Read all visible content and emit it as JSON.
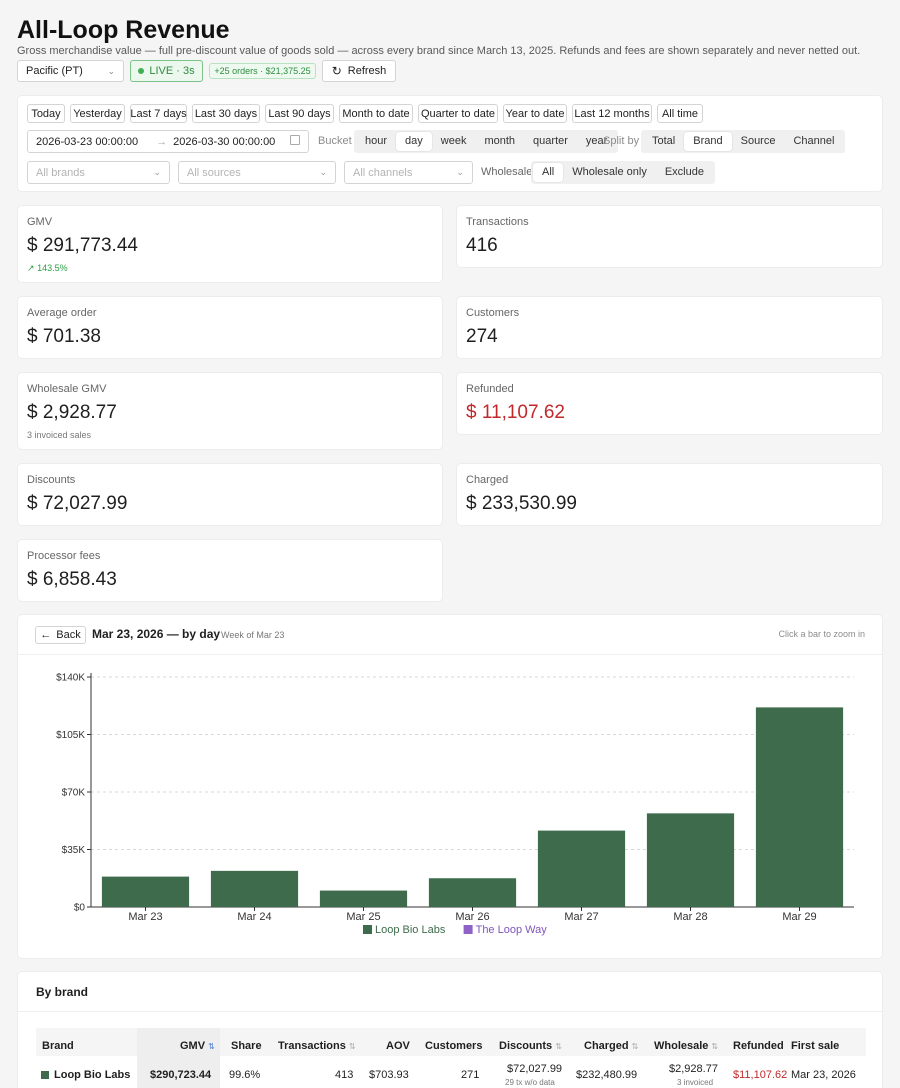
{
  "header": {
    "title": "All-Loop Revenue",
    "subtitle": "Gross merchandise value — full pre-discount value of goods sold — across every brand since March 13, 2025. Refunds and fees are shown separately and never netted out."
  },
  "toolbar": {
    "timezone": "Pacific (PT)",
    "live": "LIVE · 3s",
    "orders_badge": "+25 orders · $21,375.25",
    "refresh": "Refresh"
  },
  "ranges": [
    "Today",
    "Yesterday",
    "Last 7 days",
    "Last 30 days",
    "Last 90 days",
    "Month to date",
    "Quarter to date",
    "Year to date",
    "Last 12 months",
    "All time"
  ],
  "dates": {
    "start": "2026-03-23 00:00:00",
    "arrow": "→",
    "end": "2026-03-30 00:00:00"
  },
  "bucket": {
    "label": "Bucket",
    "options": [
      "hour",
      "day",
      "week",
      "month",
      "quarter",
      "year"
    ],
    "selected": "day"
  },
  "split": {
    "label": "Split by",
    "options": [
      "Total",
      "Brand",
      "Source",
      "Channel"
    ],
    "selected": "Brand"
  },
  "filters": {
    "brands": "All brands",
    "sources": "All sources",
    "channels": "All channels"
  },
  "wholesale": {
    "label": "Wholesale",
    "options": [
      "All",
      "Wholesale only",
      "Exclude"
    ],
    "selected": "All"
  },
  "kpis": {
    "gmv": {
      "label": "GMV",
      "currency": "$",
      "value": "291,773.44",
      "delta": "143.5%"
    },
    "transactions": {
      "label": "Transactions",
      "value": "416"
    },
    "aov": {
      "label": "Average order",
      "currency": "$",
      "value": "701.38"
    },
    "customers": {
      "label": "Customers",
      "value": "274"
    },
    "wholesale_gmv": {
      "label": "Wholesale GMV",
      "currency": "$",
      "value": "2,928.77",
      "sub": "3 invoiced sales"
    },
    "refunded": {
      "label": "Refunded",
      "currency": "$",
      "value": "11,107.62"
    },
    "discounts": {
      "label": "Discounts",
      "currency": "$",
      "value": "72,027.99"
    },
    "charged": {
      "label": "Charged",
      "currency": "$",
      "value": "233,530.99"
    },
    "fees": {
      "label": "Processor fees",
      "currency": "$",
      "value": "6,858.43"
    }
  },
  "chart_panel": {
    "back": "Back",
    "title": "Mar 23, 2026 — by day",
    "week": "Week of Mar 23",
    "hint": "Click a bar to zoom in"
  },
  "chart_data": {
    "type": "bar",
    "categories": [
      "Mar 23",
      "Mar 24",
      "Mar 25",
      "Mar 26",
      "Mar 27",
      "Mar 28",
      "Mar 29"
    ],
    "series": [
      {
        "name": "Loop Bio Labs",
        "color": "#3d6b4c",
        "values": [
          18500,
          22000,
          10000,
          17500,
          46500,
          57000,
          121500
        ]
      },
      {
        "name": "The Loop Way",
        "color": "#8e62c7",
        "values": [
          0,
          0,
          0,
          0,
          0,
          0,
          0
        ]
      }
    ],
    "y_ticks": [
      "$0",
      "$35K",
      "$70K",
      "$105K",
      "$140K"
    ],
    "ylim": [
      0,
      140000
    ],
    "grid": true,
    "legend": "bottom"
  },
  "brand_table": {
    "title": "By brand",
    "columns": [
      "Brand",
      "GMV",
      "Share",
      "Transactions",
      "AOV",
      "Customers",
      "Discounts",
      "Charged",
      "Wholesale",
      "Refunded",
      "First sale"
    ],
    "rows": [
      {
        "brand": "Loop Bio Labs",
        "color": "#3d6b4c",
        "gmv": "$290,723.44",
        "share": "99.6%",
        "transactions": "413",
        "aov": "$703.93",
        "customers": "271",
        "discounts": "$72,027.99",
        "discounts_sub": "29 tx w/o data",
        "charged": "$232,480.99",
        "wholesale": "$2,928.77",
        "wholesale_sub": "3 invoiced",
        "refunded": "$11,107.62",
        "first_sale": "Mar 23, 2026"
      }
    ]
  }
}
